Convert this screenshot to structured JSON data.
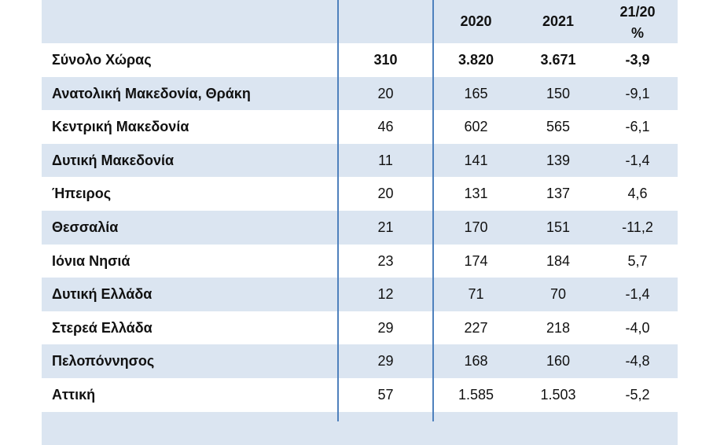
{
  "table": {
    "header": {
      "year1": "2020",
      "year2": "2021",
      "change": [
        "21/20",
        "%"
      ]
    },
    "rows": [
      [
        "Σύνολο Χώρας",
        "310",
        "3.820",
        "3.671",
        "-3,9"
      ],
      [
        "Ανατολική Μακεδονία, Θράκη",
        "20",
        "165",
        "150",
        "-9,1"
      ],
      [
        "Κεντρική Μακεδονία",
        "46",
        "602",
        "565",
        "-6,1"
      ],
      [
        "Δυτική Μακεδονία",
        "11",
        "141",
        "139",
        "-1,4"
      ],
      [
        "Ήπειρος",
        "20",
        "131",
        "137",
        "4,6"
      ],
      [
        "Θεσσαλία",
        "21",
        "170",
        "151",
        "-11,2"
      ],
      [
        "Ιόνια Νησιά",
        "23",
        "174",
        "184",
        "5,7"
      ],
      [
        "Δυτική Ελλάδα",
        "12",
        "71",
        "70",
        "-1,4"
      ],
      [
        "Στερεά Ελλάδα",
        "29",
        "227",
        "218",
        "-4,0"
      ],
      [
        "Πελοπόννησος",
        "29",
        "168",
        "160",
        "-4,8"
      ],
      [
        "Αττική",
        "57",
        "1.585",
        "1.503",
        "-5,2"
      ]
    ]
  }
}
